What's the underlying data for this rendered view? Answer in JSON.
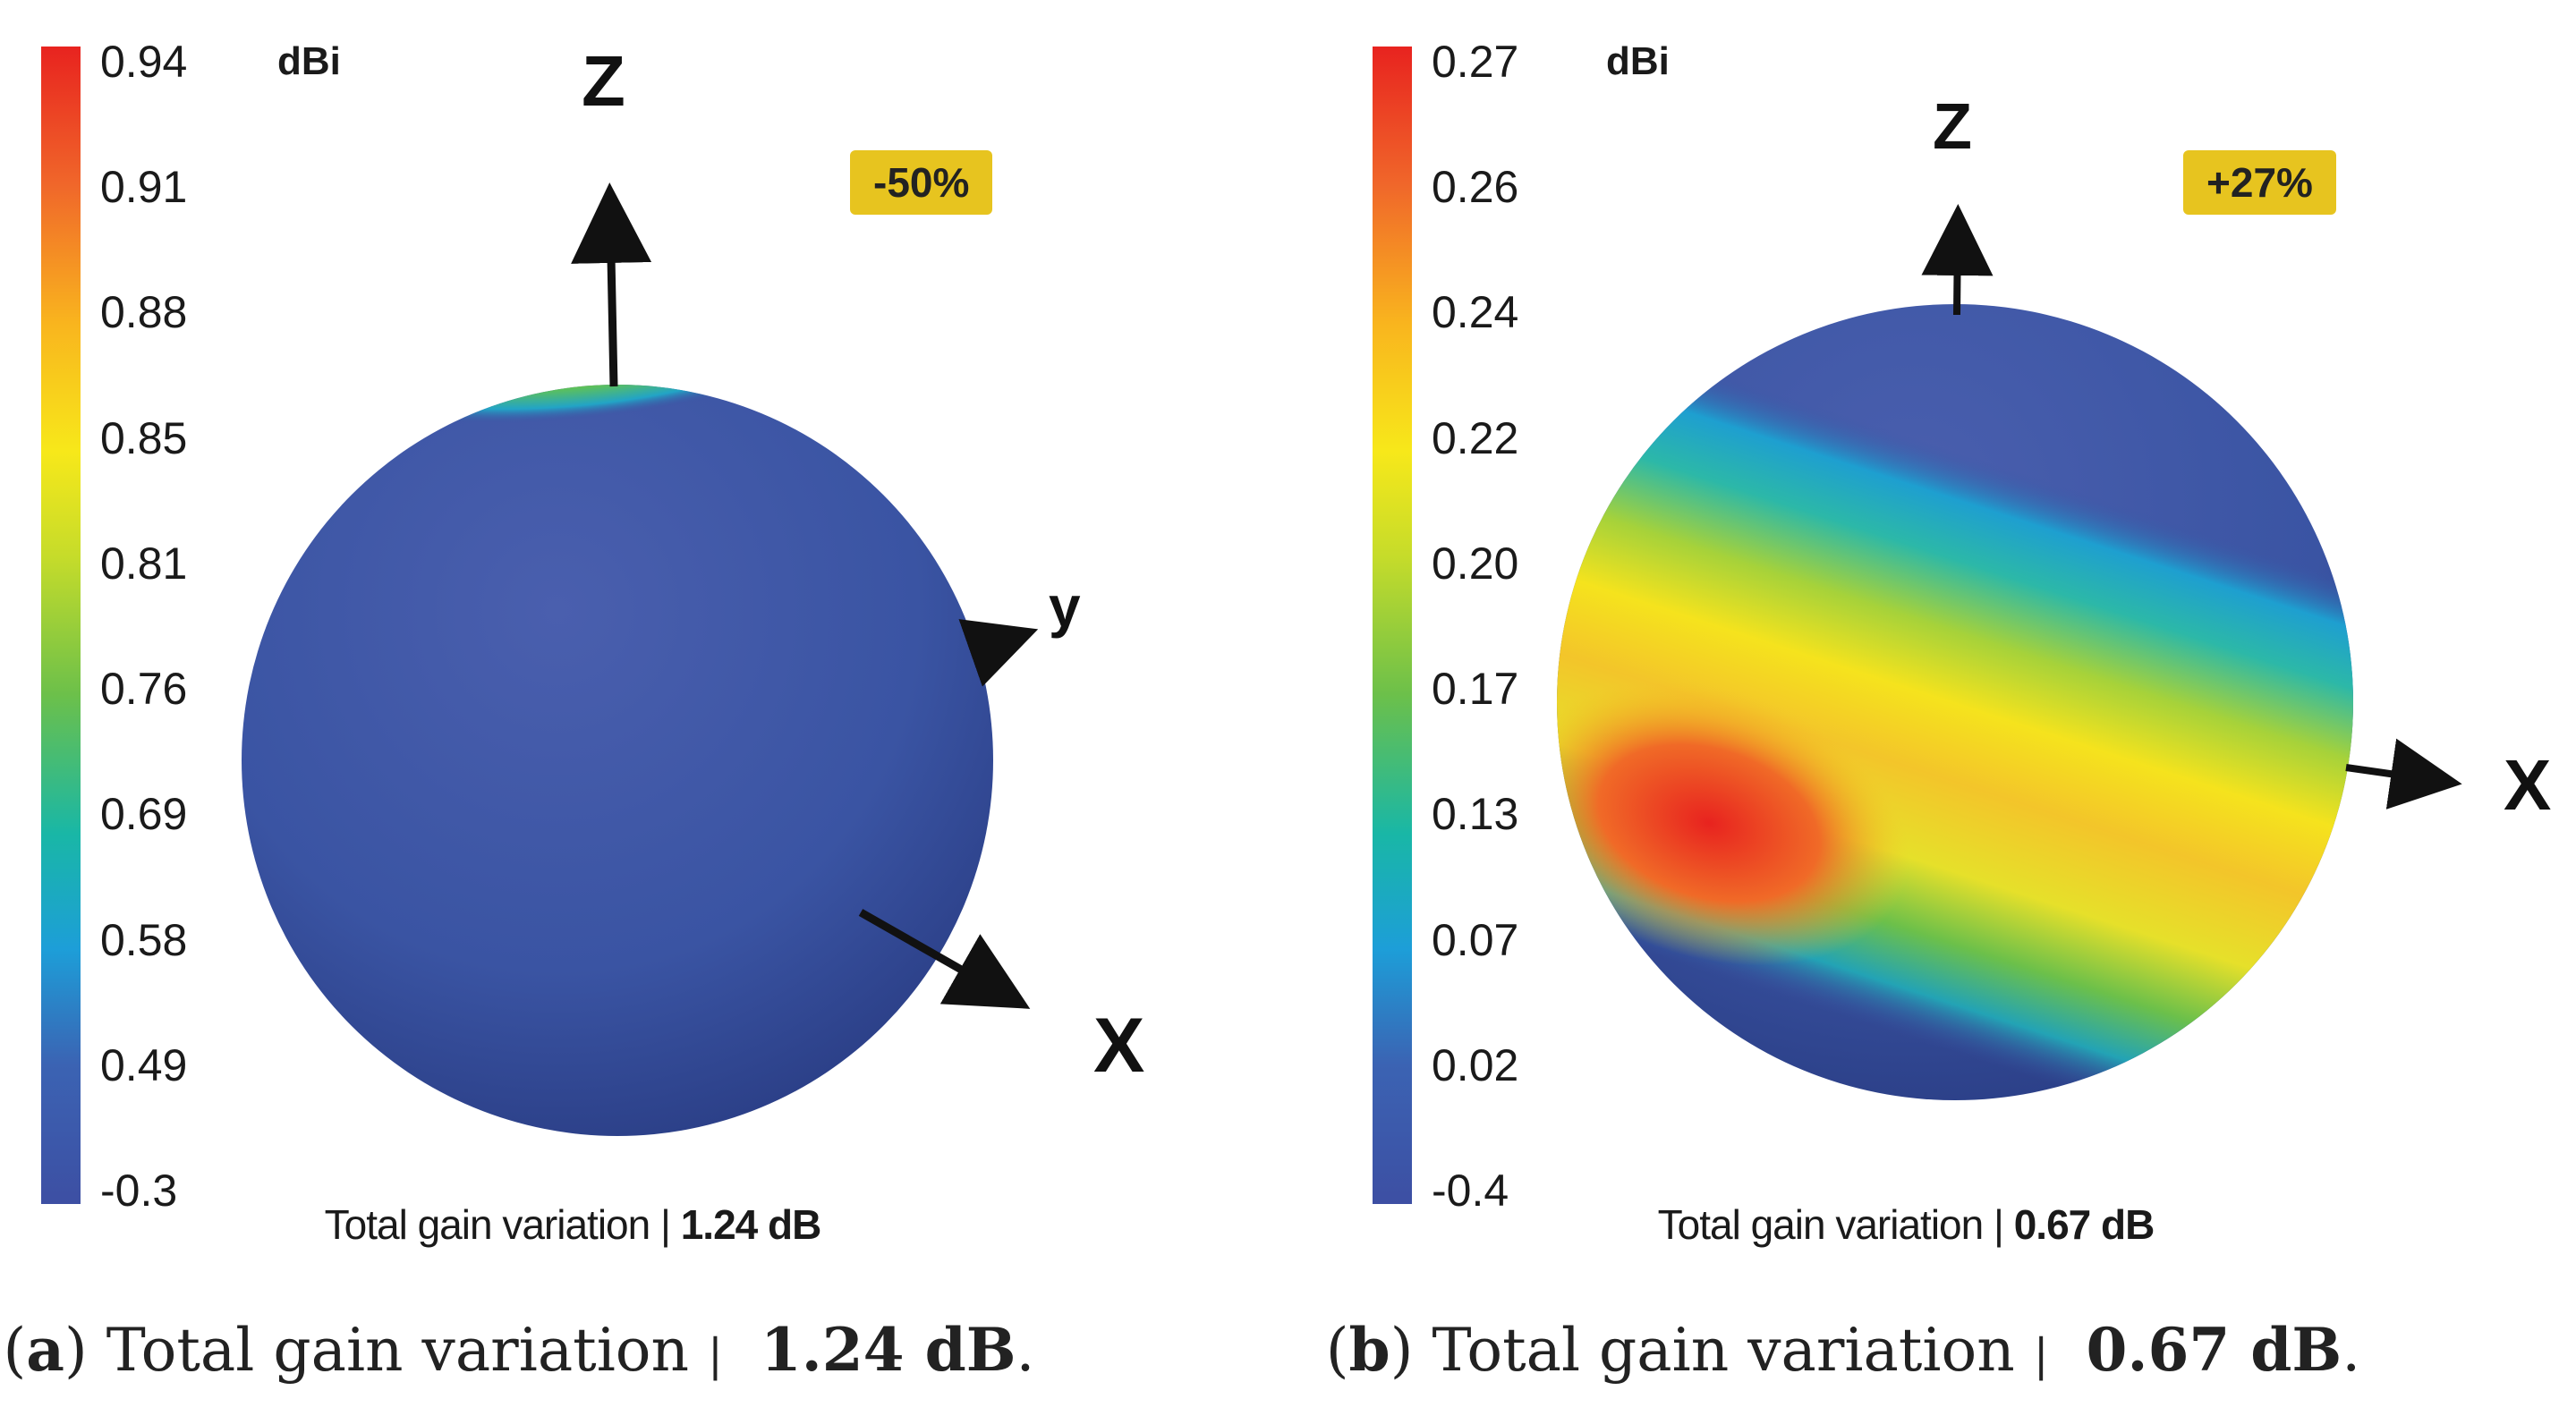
{
  "panels": [
    {
      "unit": "dBi",
      "badge": "-50%",
      "colorbar_ticks": [
        "0.94",
        "0.91",
        "0.88",
        "0.85",
        "0.81",
        "0.76",
        "0.69",
        "0.58",
        "0.49",
        "-0.3"
      ],
      "axes": {
        "z": "Z",
        "y": "y",
        "x": "X"
      },
      "inner_caption": {
        "prefix": "Total gain variation | ",
        "value": "1.24 dB"
      },
      "sub_caption": {
        "open": "(",
        "letter": "a",
        "close": ") ",
        "text": "Total gain variation ",
        "sep": "|",
        "value": "1.24 dB",
        "end": "."
      }
    },
    {
      "unit": "dBi",
      "badge": "+27%",
      "colorbar_ticks": [
        "0.27",
        "0.26",
        "0.24",
        "0.22",
        "0.20",
        "0.17",
        "0.13",
        "0.07",
        "0.02",
        "-0.4"
      ],
      "axes": {
        "z": "Z",
        "x": "X"
      },
      "inner_caption": {
        "prefix": "Total gain variation | ",
        "value": "0.67 dB"
      },
      "sub_caption": {
        "open": "(",
        "letter": "b",
        "close": ") ",
        "text": "Total gain variation ",
        "sep": "|",
        "value": "0.67 dB",
        "end": "."
      }
    }
  ],
  "colors": {
    "sphere_base": "#3c58a6",
    "sphere_dark": "#2b3d88",
    "hot_red": "#e8231f",
    "badge": "#e7c41f"
  }
}
